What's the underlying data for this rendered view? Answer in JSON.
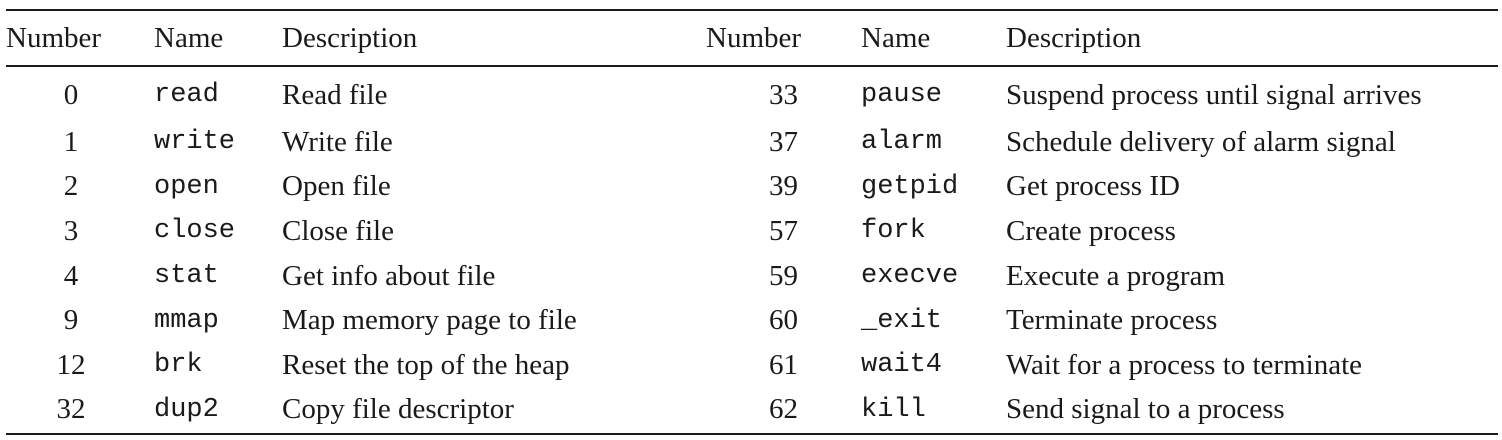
{
  "table": {
    "headers": [
      "Number",
      "Name",
      "Description",
      "Number",
      "Name",
      "Description"
    ],
    "rows": [
      [
        {
          "number": "0",
          "name": "read",
          "description": "Read file"
        },
        {
          "number": "33",
          "name": "pause",
          "description": "Suspend process until signal arrives"
        }
      ],
      [
        {
          "number": "1",
          "name": "write",
          "description": "Write file"
        },
        {
          "number": "37",
          "name": "alarm",
          "description": "Schedule delivery of alarm signal"
        }
      ],
      [
        {
          "number": "2",
          "name": "open",
          "description": "Open file"
        },
        {
          "number": "39",
          "name": "getpid",
          "description": "Get process ID"
        }
      ],
      [
        {
          "number": "3",
          "name": "close",
          "description": "Close file"
        },
        {
          "number": "57",
          "name": "fork",
          "description": "Create process"
        }
      ],
      [
        {
          "number": "4",
          "name": "stat",
          "description": "Get info about file"
        },
        {
          "number": "59",
          "name": "execve",
          "description": "Execute a program"
        }
      ],
      [
        {
          "number": "9",
          "name": "mmap",
          "description": "Map memory page to file"
        },
        {
          "number": "60",
          "name": "_exit",
          "description": "Terminate process"
        }
      ],
      [
        {
          "number": "12",
          "name": "brk",
          "description": "Reset the top of the heap"
        },
        {
          "number": "61",
          "name": "wait4",
          "description": "Wait for a process to terminate"
        }
      ],
      [
        {
          "number": "32",
          "name": "dup2",
          "description": "Copy file descriptor"
        },
        {
          "number": "62",
          "name": "kill",
          "description": "Send signal to a process"
        }
      ]
    ]
  }
}
